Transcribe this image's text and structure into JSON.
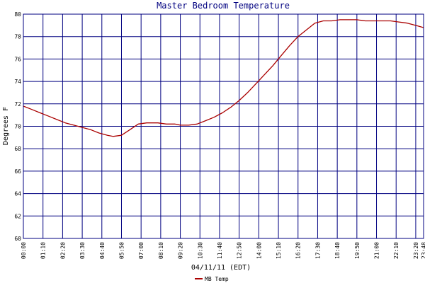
{
  "chart_data": {
    "type": "line",
    "title": "Master Bedroom Temperature",
    "xlabel": "04/11/11 (EDT)",
    "ylabel": "Degrees F",
    "ylim": [
      60,
      80
    ],
    "xlim": [
      "00:00",
      "23:48"
    ],
    "yticks": [
      60,
      62,
      64,
      66,
      68,
      70,
      72,
      74,
      76,
      78,
      80
    ],
    "xticks": [
      "00:00",
      "01:10",
      "02:20",
      "03:30",
      "04:40",
      "05:50",
      "07:00",
      "08:10",
      "09:20",
      "10:30",
      "11:40",
      "12:50",
      "14:00",
      "15:10",
      "16:20",
      "17:30",
      "18:40",
      "19:50",
      "21:00",
      "22:10",
      "23:20",
      "23:48"
    ],
    "grid": true,
    "legend": "bottom-center",
    "colors": {
      "grid": "#000080",
      "line": "#aa0000",
      "title": "#000080"
    },
    "series": [
      {
        "name": "MB Temp",
        "x": [
          "00:00",
          "00:30",
          "01:00",
          "01:30",
          "02:00",
          "02:30",
          "03:00",
          "03:30",
          "04:00",
          "04:30",
          "05:00",
          "05:20",
          "05:50",
          "06:20",
          "06:50",
          "07:20",
          "08:00",
          "08:30",
          "09:00",
          "09:20",
          "09:50",
          "10:20",
          "10:50",
          "11:20",
          "11:50",
          "12:20",
          "12:50",
          "13:20",
          "13:50",
          "14:20",
          "14:50",
          "15:20",
          "15:50",
          "16:20",
          "16:50",
          "17:20",
          "17:50",
          "18:20",
          "18:50",
          "19:20",
          "19:50",
          "20:20",
          "20:50",
          "21:20",
          "21:50",
          "22:20",
          "22:50",
          "23:20",
          "23:48"
        ],
        "values": [
          71.8,
          71.5,
          71.2,
          70.9,
          70.6,
          70.3,
          70.1,
          69.9,
          69.7,
          69.4,
          69.2,
          69.1,
          69.2,
          69.7,
          70.2,
          70.3,
          70.3,
          70.2,
          70.2,
          70.1,
          70.1,
          70.2,
          70.5,
          70.8,
          71.2,
          71.7,
          72.3,
          73.0,
          73.8,
          74.6,
          75.4,
          76.3,
          77.2,
          78.0,
          78.6,
          79.2,
          79.4,
          79.4,
          79.5,
          79.5,
          79.5,
          79.4,
          79.4,
          79.4,
          79.4,
          79.3,
          79.2,
          79.0,
          78.8
        ]
      }
    ]
  }
}
